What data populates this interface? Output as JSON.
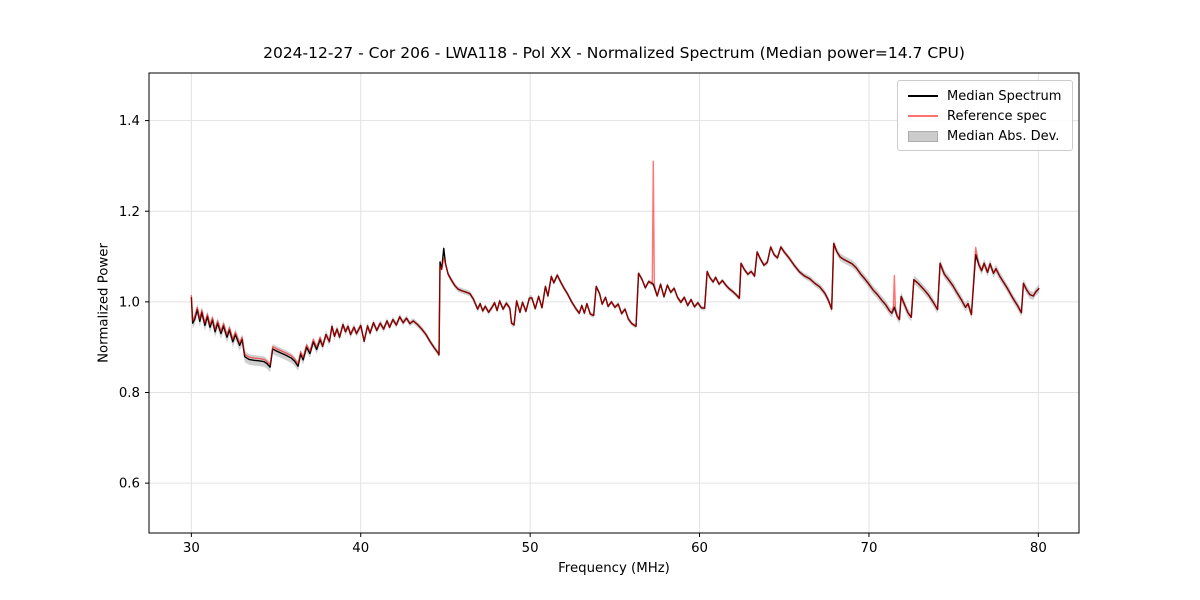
{
  "chart_data": {
    "type": "line",
    "title": "2024-12-27 - Cor 206 - LWA118 - Pol XX - Normalized Spectrum (Median power=14.7 CPU)",
    "xlabel": "Frequency (MHz)",
    "ylabel": "Normalized Power",
    "xlim": [
      27.5,
      82.4
    ],
    "ylim": [
      0.49,
      1.505
    ],
    "xticks": [
      30,
      40,
      50,
      60,
      70,
      80
    ],
    "xtick_labels": [
      "30",
      "40",
      "50",
      "60",
      "70",
      "80"
    ],
    "yticks": [
      0.6,
      0.8,
      1.0,
      1.2,
      1.4
    ],
    "ytick_labels": [
      "0.6",
      "0.8",
      "1.0",
      "1.2",
      "1.4"
    ],
    "grid": true,
    "style": {
      "median_color": "#000000",
      "reference_color": "#ff0000",
      "reference_opacity": 0.55,
      "band_color": "#808080",
      "band_opacity": 0.38,
      "grid_color": "#e2e2e2",
      "frame_color": "#000000"
    },
    "legend": {
      "position": "upper right",
      "entries": [
        {
          "label": "Median Spectrum",
          "type": "line",
          "color": "#000000"
        },
        {
          "label": "Reference spec",
          "type": "line",
          "color": "rgba(255,0,0,0.55)"
        },
        {
          "label": "Median Abs. Dev.",
          "type": "patch",
          "color": "#cccccc"
        }
      ]
    },
    "series": [
      {
        "name": "Median Spectrum",
        "x": [
          30.0,
          30.08,
          30.2,
          30.35,
          30.5,
          30.62,
          30.8,
          30.95,
          31.1,
          31.25,
          31.4,
          31.55,
          31.75,
          31.9,
          32.1,
          32.25,
          32.45,
          32.6,
          32.85,
          33.0,
          33.15,
          33.4,
          33.7,
          34.0,
          34.3,
          34.45,
          34.65,
          34.8,
          35.0,
          35.3,
          35.6,
          35.9,
          36.1,
          36.3,
          36.45,
          36.6,
          36.8,
          37.0,
          37.2,
          37.4,
          37.6,
          37.75,
          37.95,
          38.15,
          38.3,
          38.45,
          38.6,
          38.75,
          38.95,
          39.1,
          39.25,
          39.4,
          39.6,
          39.75,
          40.0,
          40.2,
          40.4,
          40.55,
          40.75,
          40.95,
          41.15,
          41.35,
          41.55,
          41.7,
          41.9,
          42.1,
          42.3,
          42.5,
          42.7,
          42.9,
          43.1,
          43.35,
          43.6,
          43.85,
          44.1,
          44.35,
          44.55,
          44.62,
          44.68,
          44.78,
          44.9,
          45.0,
          45.15,
          45.35,
          45.55,
          45.75,
          46.0,
          46.25,
          46.45,
          46.65,
          46.9,
          47.05,
          47.2,
          47.35,
          47.55,
          47.75,
          47.9,
          48.05,
          48.2,
          48.4,
          48.6,
          48.8,
          48.9,
          49.05,
          49.2,
          49.4,
          49.55,
          49.75,
          49.95,
          50.1,
          50.3,
          50.5,
          50.7,
          50.9,
          51.05,
          51.25,
          51.4,
          51.6,
          51.8,
          52.0,
          52.2,
          52.45,
          52.7,
          52.9,
          53.05,
          53.2,
          53.35,
          53.55,
          53.75,
          53.9,
          54.1,
          54.25,
          54.45,
          54.6,
          54.8,
          55.0,
          55.2,
          55.4,
          55.6,
          55.8,
          56.0,
          56.25,
          56.4,
          56.6,
          56.8,
          57.0,
          57.27,
          57.5,
          57.7,
          57.9,
          58.1,
          58.3,
          58.5,
          58.7,
          58.9,
          59.1,
          59.3,
          59.5,
          59.7,
          59.9,
          60.1,
          60.3,
          60.45,
          60.6,
          60.8,
          60.95,
          61.15,
          61.35,
          61.55,
          61.75,
          61.95,
          62.15,
          62.35,
          62.45,
          62.65,
          62.85,
          63.05,
          63.25,
          63.4,
          63.6,
          63.8,
          64.0,
          64.2,
          64.4,
          64.6,
          64.8,
          65.0,
          65.3,
          65.6,
          65.9,
          66.2,
          66.5,
          66.8,
          67.1,
          67.4,
          67.6,
          67.8,
          67.92,
          68.1,
          68.3,
          68.5,
          68.75,
          69.0,
          69.25,
          69.5,
          69.75,
          70.0,
          70.25,
          70.5,
          70.75,
          71.0,
          71.2,
          71.35,
          71.5,
          71.65,
          71.8,
          71.9,
          72.1,
          72.3,
          72.5,
          72.65,
          72.9,
          73.2,
          73.5,
          73.8,
          74.05,
          74.2,
          74.45,
          74.7,
          74.95,
          75.2,
          75.45,
          75.7,
          75.85,
          76.05,
          76.3,
          76.5,
          76.65,
          76.8,
          77.0,
          77.15,
          77.35,
          77.5,
          77.7,
          77.9,
          78.2,
          78.5,
          78.8,
          79.0,
          79.12,
          79.3,
          79.5,
          79.7,
          79.85,
          80.05
        ],
        "y": [
          1.01,
          0.953,
          0.962,
          0.983,
          0.957,
          0.977,
          0.948,
          0.968,
          0.944,
          0.96,
          0.934,
          0.953,
          0.93,
          0.947,
          0.922,
          0.938,
          0.912,
          0.928,
          0.904,
          0.917,
          0.879,
          0.873,
          0.871,
          0.87,
          0.868,
          0.864,
          0.856,
          0.896,
          0.892,
          0.887,
          0.882,
          0.876,
          0.869,
          0.858,
          0.885,
          0.872,
          0.9,
          0.886,
          0.912,
          0.895,
          0.917,
          0.902,
          0.928,
          0.912,
          0.946,
          0.924,
          0.94,
          0.922,
          0.95,
          0.934,
          0.946,
          0.928,
          0.944,
          0.93,
          0.948,
          0.913,
          0.947,
          0.931,
          0.954,
          0.937,
          0.953,
          0.94,
          0.958,
          0.944,
          0.961,
          0.949,
          0.967,
          0.954,
          0.964,
          0.952,
          0.958,
          0.95,
          0.94,
          0.928,
          0.912,
          0.898,
          0.888,
          0.883,
          1.088,
          1.072,
          1.118,
          1.085,
          1.062,
          1.048,
          1.036,
          1.028,
          1.024,
          1.021,
          1.018,
          1.006,
          0.984,
          0.996,
          0.98,
          0.99,
          0.977,
          0.988,
          0.998,
          0.981,
          1.002,
          0.984,
          0.997,
          0.986,
          0.953,
          0.949,
          1.002,
          0.977,
          0.999,
          0.979,
          1.008,
          1.009,
          0.985,
          1.012,
          0.987,
          1.034,
          1.013,
          1.056,
          1.042,
          1.059,
          1.044,
          1.03,
          1.018,
          1.0,
          0.985,
          0.975,
          0.992,
          0.975,
          0.996,
          0.973,
          0.97,
          1.034,
          1.018,
          0.995,
          1.01,
          0.99,
          1.0,
          0.988,
          0.995,
          0.974,
          0.984,
          0.962,
          0.952,
          0.946,
          1.063,
          1.05,
          1.031,
          1.045,
          1.039,
          1.013,
          1.039,
          1.011,
          1.037,
          1.021,
          1.03,
          1.01,
          0.999,
          1.01,
          0.992,
          1.005,
          0.989,
          0.998,
          0.987,
          0.986,
          1.067,
          1.054,
          1.044,
          1.054,
          1.039,
          1.047,
          1.037,
          1.029,
          1.023,
          1.016,
          1.008,
          1.085,
          1.071,
          1.061,
          1.067,
          1.057,
          1.11,
          1.094,
          1.081,
          1.087,
          1.121,
          1.104,
          1.097,
          1.121,
          1.11,
          1.096,
          1.08,
          1.066,
          1.057,
          1.051,
          1.041,
          1.033,
          1.019,
          1.004,
          0.984,
          1.129,
          1.111,
          1.099,
          1.094,
          1.089,
          1.084,
          1.075,
          1.062,
          1.051,
          1.039,
          1.026,
          1.016,
          1.004,
          0.993,
          0.981,
          0.975,
          0.988,
          0.97,
          0.961,
          1.012,
          0.994,
          0.976,
          0.966,
          1.049,
          1.041,
          1.029,
          1.016,
          0.999,
          0.983,
          1.085,
          1.061,
          1.049,
          1.036,
          1.02,
          1.005,
          0.988,
          0.996,
          0.972,
          1.104,
          1.081,
          1.069,
          1.085,
          1.065,
          1.084,
          1.063,
          1.073,
          1.058,
          1.046,
          1.028,
          1.008,
          0.99,
          0.976,
          1.041,
          1.027,
          1.016,
          1.013,
          1.022,
          1.03
        ]
      },
      {
        "name": "Reference spec",
        "derived_from": "Median Spectrum",
        "offset_ranges": [
          {
            "from": 30.0,
            "to": 37.6,
            "dy": 0.005
          }
        ],
        "overrides": [
          [
            44.68,
            1.079
          ],
          [
            44.9,
            1.096
          ],
          [
            76.3,
            1.12
          ]
        ],
        "spikes": [
          {
            "x": 57.27,
            "y": 1.31
          },
          {
            "x": 71.5,
            "y": 1.058
          }
        ]
      },
      {
        "name": "Median Abs. Dev.",
        "halfwidth_points": [
          [
            30,
            0.012
          ],
          [
            33,
            0.012
          ],
          [
            35,
            0.011
          ],
          [
            37,
            0.01
          ],
          [
            39,
            0.008
          ],
          [
            41,
            0.007
          ],
          [
            44,
            0.006
          ],
          [
            46,
            0.006
          ],
          [
            50,
            0.006
          ],
          [
            54,
            0.005
          ],
          [
            58,
            0.005
          ],
          [
            62,
            0.005
          ],
          [
            66,
            0.006
          ],
          [
            68,
            0.008
          ],
          [
            70,
            0.009
          ],
          [
            72,
            0.01
          ],
          [
            74,
            0.009
          ],
          [
            76,
            0.01
          ],
          [
            78,
            0.009
          ],
          [
            80.05,
            0.009
          ]
        ]
      }
    ]
  }
}
